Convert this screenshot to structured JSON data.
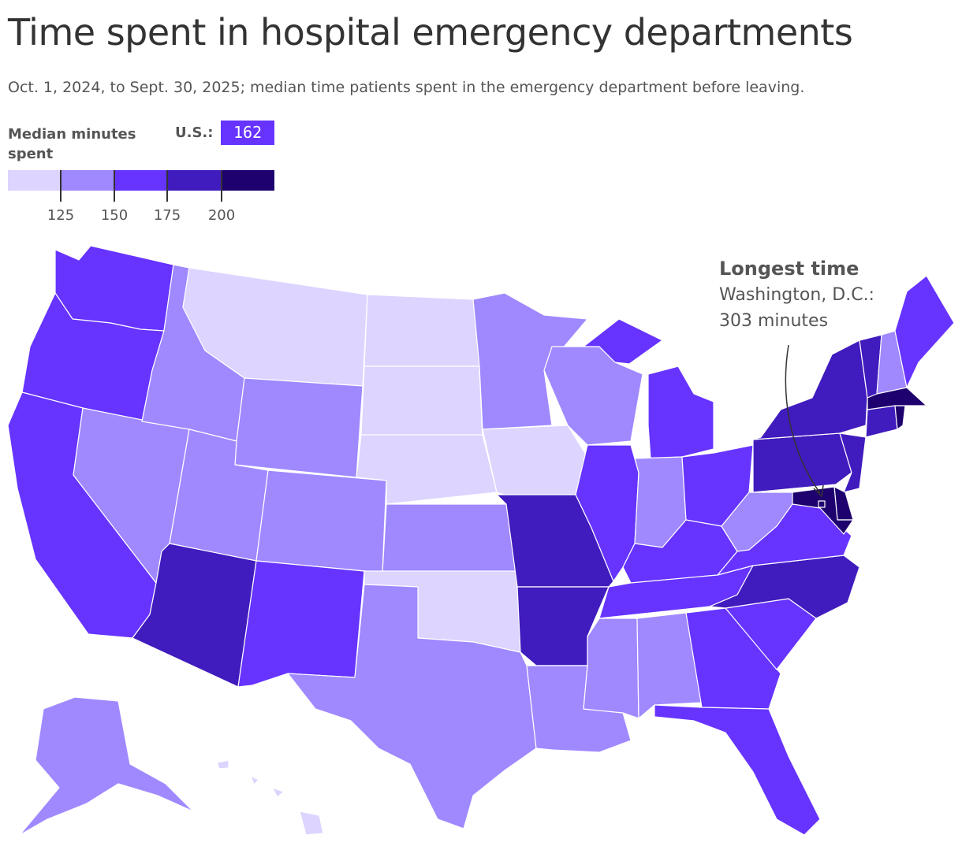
{
  "title": "Time spent in hospital emergency departments",
  "subtitle": "Oct. 1, 2024, to Sept. 30, 2025; median time patients spent in the emergency department before leaving.",
  "legend": {
    "title": "Median minutes spent",
    "us_label": "U.S.:",
    "us_value": "162",
    "bins": [
      {
        "color": "#ddd4ff"
      },
      {
        "color": "#a088ff"
      },
      {
        "color": "#6633ff"
      },
      {
        "color": "#401bbd"
      },
      {
        "color": "#1e006e"
      }
    ],
    "ticks": [
      "125",
      "150",
      "175",
      "200"
    ]
  },
  "annotation": {
    "title": "Longest time",
    "line1": "Washington, D.C.:",
    "line2": "303 minutes"
  },
  "states": {
    "WA": 2,
    "OR": 2,
    "CA": 2,
    "NV": 1,
    "ID": 1,
    "MT": 0,
    "WY": 1,
    "UT": 1,
    "AZ": 3,
    "CO": 1,
    "NM": 2,
    "ND": 0,
    "SD": 0,
    "NE": 0,
    "KS": 1,
    "OK": 0,
    "TX": 1,
    "MN": 1,
    "IA": 0,
    "MO": 3,
    "AR": 3,
    "LA": 1,
    "WI": 1,
    "IL": 2,
    "MI": 2,
    "IN": 1,
    "OH": 2,
    "KY": 2,
    "TN": 2,
    "MS": 1,
    "AL": 1,
    "GA": 2,
    "FL": 2,
    "SC": 2,
    "NC": 3,
    "VA": 2,
    "WV": 1,
    "PA": 3,
    "NY": 3,
    "VT": 3,
    "NH": 1,
    "ME": 2,
    "MA": 4,
    "RI": 4,
    "CT": 3,
    "NJ": 3,
    "DE": 4,
    "MD": 4,
    "DC": 4,
    "AK": 1,
    "HI": 0
  }
}
